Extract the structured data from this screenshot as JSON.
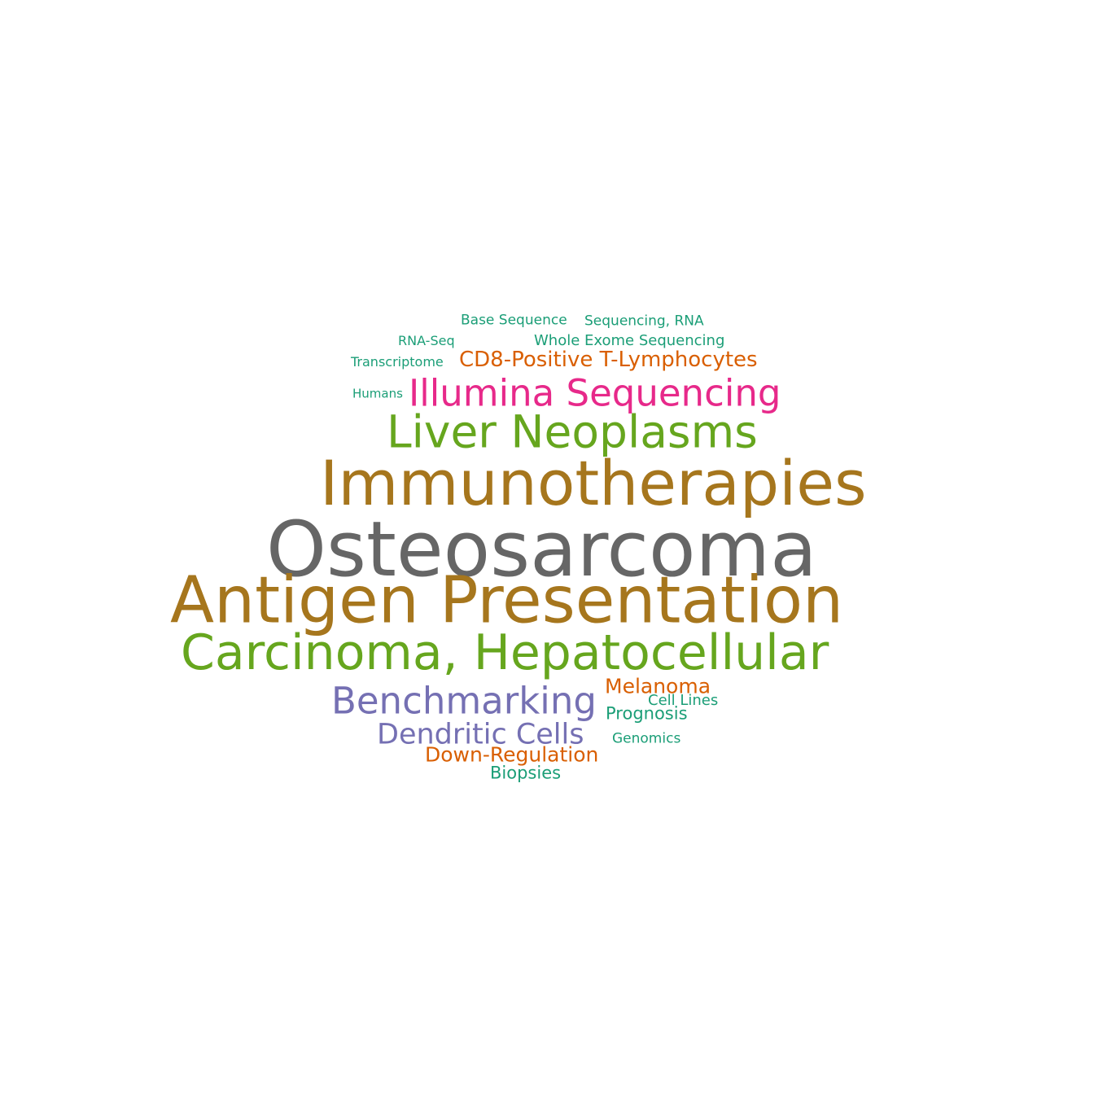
{
  "palette": {
    "gray": "#666666",
    "brown": "#a6761d",
    "green": "#66a61e",
    "purple": "#7570b3",
    "magenta": "#e7298a",
    "orange": "#d95f02",
    "teal": "#1b9e77"
  },
  "words": [
    {
      "text": "Osteosarcoma",
      "color": "#666666"
    },
    {
      "text": "Antigen Presentation",
      "color": "#a6761d"
    },
    {
      "text": "Immunotherapies",
      "color": "#a6761d"
    },
    {
      "text": "Carcinoma, Hepatocellular",
      "color": "#66a61e"
    },
    {
      "text": "Liver Neoplasms",
      "color": "#66a61e"
    },
    {
      "text": "Illumina Sequencing",
      "color": "#e7298a"
    },
    {
      "text": "Benchmarking",
      "color": "#7570b3"
    },
    {
      "text": "Dendritic Cells",
      "color": "#7570b3"
    },
    {
      "text": "CD8-Positive T-Lymphocytes",
      "color": "#d95f02"
    },
    {
      "text": "Melanoma",
      "color": "#d95f02"
    },
    {
      "text": "Down-Regulation",
      "color": "#d95f02"
    },
    {
      "text": "Prognosis",
      "color": "#1b9e77"
    },
    {
      "text": "Biopsies",
      "color": "#1b9e77"
    },
    {
      "text": "Whole Exome Sequencing",
      "color": "#1b9e77"
    },
    {
      "text": "Sequencing, RNA",
      "color": "#1b9e77"
    },
    {
      "text": "Base Sequence",
      "color": "#1b9e77"
    },
    {
      "text": "Cell Lines",
      "color": "#1b9e77"
    },
    {
      "text": "Genomics",
      "color": "#1b9e77"
    },
    {
      "text": "RNA-Seq",
      "color": "#1b9e77"
    },
    {
      "text": "Transcriptome",
      "color": "#1b9e77"
    },
    {
      "text": "Humans",
      "color": "#1b9e77"
    }
  ]
}
